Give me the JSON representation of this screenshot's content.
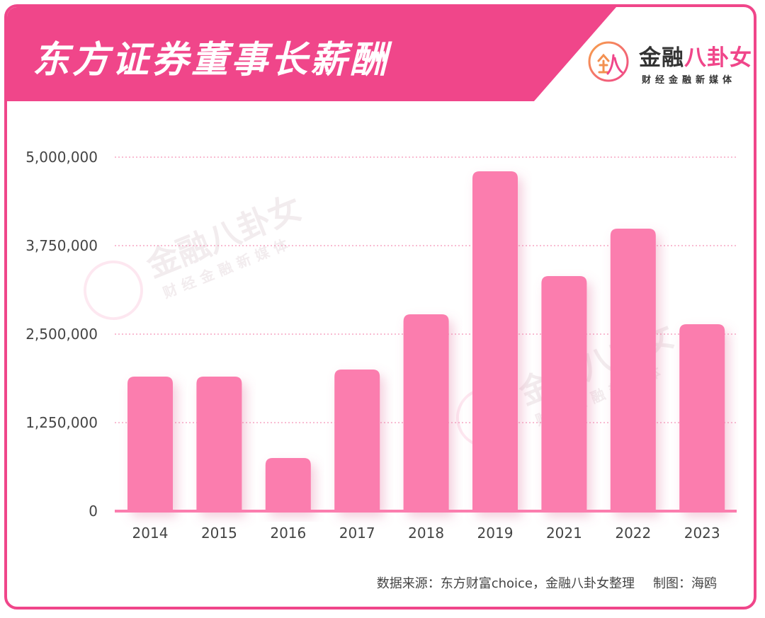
{
  "header": {
    "title": "东方证券董事长薪酬"
  },
  "logo": {
    "main_black": "金融",
    "main_pink": "八卦女",
    "sub": "财经金融新媒体"
  },
  "source": {
    "text": "数据来源：东方财富choice，金融八卦女整理",
    "author": "制图：海鸥"
  },
  "colors": {
    "accent": "#f0468a",
    "bar": "#fb7dae",
    "grid": "#f07aa6"
  },
  "chart_data": {
    "type": "bar",
    "categories": [
      "2014",
      "2015",
      "2016",
      "2017",
      "2018",
      "2019",
      "2021",
      "2022",
      "2023"
    ],
    "values": [
      1900000,
      1900000,
      750000,
      2000000,
      2780000,
      4800000,
      3320000,
      3990000,
      2640000
    ],
    "title": "东方证券董事长薪酬",
    "xlabel": "",
    "ylabel": "",
    "ylim": [
      0,
      5000000
    ],
    "yticks": [
      0,
      1250000,
      2500000,
      3750000,
      5000000
    ],
    "ytick_labels": [
      "0",
      "1,250,000",
      "2,500,000",
      "3,750,000",
      "5,000,000"
    ],
    "grid": true,
    "legend": "none"
  }
}
